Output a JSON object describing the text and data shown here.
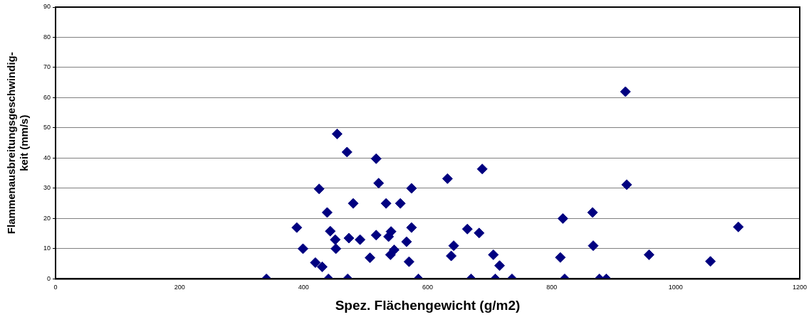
{
  "chart_data": {
    "type": "scatter",
    "xlabel": "Spez. Flächengewicht (g/m2)",
    "ylabel": "Flammenausbreitungsgeschwindig-keit (mm/s)",
    "series": [
      {
        "color": "#000080",
        "x": [
          340,
          389,
          399,
          419,
          430,
          425,
          438,
          443,
          451,
          452,
          440,
          454,
          470,
          471,
          473,
          480,
          491,
          507,
          517,
          521,
          517,
          533,
          537,
          541,
          540,
          546,
          556,
          566,
          570,
          574,
          574,
          585,
          632,
          688,
          642,
          638,
          664,
          683,
          670,
          706,
          716,
          709,
          736,
          814,
          818,
          821,
          866,
          867,
          877,
          888,
          919,
          921,
          957,
          1056,
          1101
        ],
        "values": [
          0,
          17,
          10,
          5.4,
          4,
          29.8,
          22,
          15.8,
          13,
          10,
          0,
          48,
          42,
          0,
          13.5,
          25,
          13,
          7,
          39.8,
          31.7,
          14.5,
          25,
          14,
          15.7,
          8,
          9.6,
          25,
          12.3,
          5.7,
          30,
          17,
          0,
          33.2,
          36.4,
          11,
          7.6,
          16.5,
          15.2,
          0,
          8,
          4.4,
          0,
          0,
          7.1,
          20,
          0,
          22,
          11,
          0,
          0,
          62,
          31.2,
          8,
          5.8,
          17.2
        ]
      }
    ],
    "xlim": [
      0,
      1200
    ],
    "xticks": [
      0,
      200,
      400,
      600,
      800,
      1000,
      1200
    ],
    "ylim": [
      0,
      90
    ],
    "yticks": [
      0,
      10,
      20,
      30,
      40,
      50,
      60,
      70,
      80,
      90
    ],
    "grid": "y",
    "marker": "diamond",
    "legend": false
  }
}
